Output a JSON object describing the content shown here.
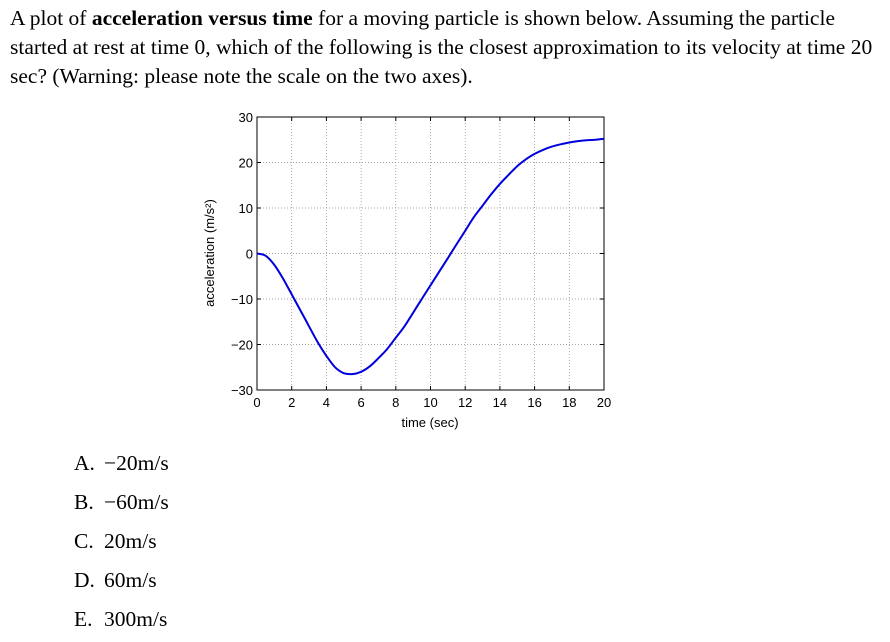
{
  "question": {
    "part1": "A plot of ",
    "bold1": "acceleration versus time",
    "part2": " for a moving particle is shown below. Assuming the particle started at rest at time 0, which of the following is the closest approximation to its velocity at time 20 sec? (Warning: please note the scale on the two axes)."
  },
  "chart_data": {
    "type": "line",
    "xlabel": "time (sec)",
    "ylabel": "acceleration (m/s²)",
    "xlim": [
      0,
      20
    ],
    "ylim": [
      -30,
      30
    ],
    "xticks": [
      "0",
      "2",
      "4",
      "6",
      "8",
      "10",
      "12",
      "14",
      "16",
      "18",
      "20"
    ],
    "yticks": [
      "30",
      "20",
      "10",
      "0",
      "−10",
      "−20",
      "−30"
    ],
    "grid": true,
    "series": [
      {
        "color": "#0000dd",
        "x": [
          0,
          0.5,
          1,
          1.5,
          2,
          2.5,
          3,
          3.5,
          4,
          4.5,
          5,
          5.5,
          6,
          6.5,
          7,
          7.5,
          8,
          8.5,
          9,
          9.5,
          10,
          10.5,
          11,
          11.5,
          12,
          12.5,
          13,
          13.5,
          14,
          14.5,
          15,
          15.5,
          16,
          16.5,
          17,
          17.5,
          18,
          18.5,
          19,
          19.5,
          20
        ],
        "y": [
          0,
          -0.5,
          -2.5,
          -5.5,
          -9,
          -12.5,
          -16,
          -19.5,
          -22.5,
          -25,
          -26.3,
          -26.5,
          -26,
          -24.8,
          -23,
          -21,
          -18.5,
          -16,
          -13,
          -10,
          -7,
          -4,
          -1,
          2,
          5,
          8,
          10.5,
          13,
          15.3,
          17.3,
          19.2,
          20.7,
          21.9,
          22.8,
          23.5,
          24,
          24.4,
          24.7,
          24.9,
          25,
          25.2
        ]
      }
    ]
  },
  "choices": [
    {
      "letter": "A.",
      "text": "−20m/s"
    },
    {
      "letter": "B.",
      "text": "−60m/s"
    },
    {
      "letter": "C.",
      "text": "20m/s"
    },
    {
      "letter": "D.",
      "text": "60m/s"
    },
    {
      "letter": "E.",
      "text": "300m/s"
    }
  ]
}
